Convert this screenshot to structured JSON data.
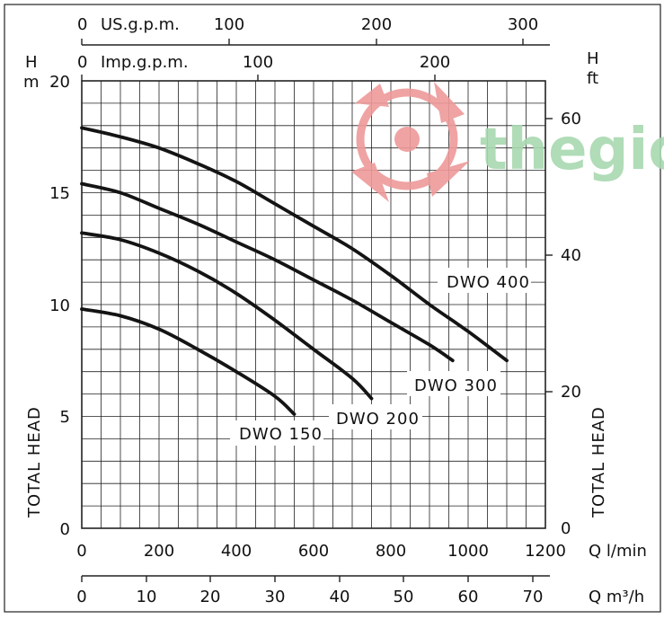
{
  "chart_data": {
    "type": "line",
    "x": {
      "label": "Q l/min",
      "min": 0,
      "max": 1200,
      "ticks": [
        "0",
        "200",
        "400",
        "600",
        "800",
        "1000",
        "1200"
      ]
    },
    "y_left": {
      "units": [
        "H",
        "m"
      ],
      "title": "TOTAL HEAD",
      "min": 0,
      "max": 20,
      "ticks": [
        "0",
        "5",
        "10",
        "15",
        "20"
      ]
    },
    "y_right": {
      "units": [
        "H",
        "ft"
      ],
      "title": "TOTAL HEAD",
      "ticks": [
        "0",
        "20",
        "40",
        "60"
      ]
    },
    "top_axes": [
      {
        "label": "US.g.p.m.",
        "zero_label": "0",
        "ticks": [
          "100",
          "200",
          "300"
        ]
      },
      {
        "label": "Imp.g.p.m.",
        "zero_label": "0",
        "ticks": [
          "100",
          "200"
        ]
      }
    ],
    "bottom_axis": {
      "label": "Q m³/h",
      "ticks": [
        "0",
        "10",
        "20",
        "30",
        "40",
        "50",
        "60",
        "70"
      ]
    },
    "series": [
      {
        "name": "DWO 400",
        "x": [
          0,
          100,
          200,
          300,
          400,
          500,
          600,
          700,
          800,
          900,
          1000,
          1100
        ],
        "y": [
          17.9,
          17.5,
          17.0,
          16.3,
          15.5,
          14.5,
          13.5,
          12.5,
          11.3,
          10.0,
          8.8,
          7.5
        ]
      },
      {
        "name": "DWO 300",
        "x": [
          0,
          100,
          200,
          300,
          400,
          500,
          600,
          700,
          800,
          900,
          960
        ],
        "y": [
          15.4,
          15.0,
          14.3,
          13.6,
          12.8,
          12.0,
          11.1,
          10.2,
          9.2,
          8.2,
          7.5
        ]
      },
      {
        "name": "DWO 200",
        "x": [
          0,
          100,
          200,
          300,
          400,
          500,
          600,
          700,
          750
        ],
        "y": [
          13.2,
          12.9,
          12.3,
          11.5,
          10.5,
          9.3,
          8.0,
          6.7,
          5.8
        ]
      },
      {
        "name": "DWO 150",
        "x": [
          0,
          100,
          200,
          300,
          400,
          500,
          550
        ],
        "y": [
          9.8,
          9.5,
          8.9,
          8.0,
          7.0,
          5.9,
          5.1
        ]
      }
    ],
    "grid": true,
    "legend": "inline labels"
  },
  "watermark": {
    "text": "thegioi",
    "logo_color": "#ee9a9a",
    "text_color": "#a8d9b0"
  },
  "colors": {
    "curve": "#141414",
    "grid": "#222222",
    "text": "#111111"
  }
}
